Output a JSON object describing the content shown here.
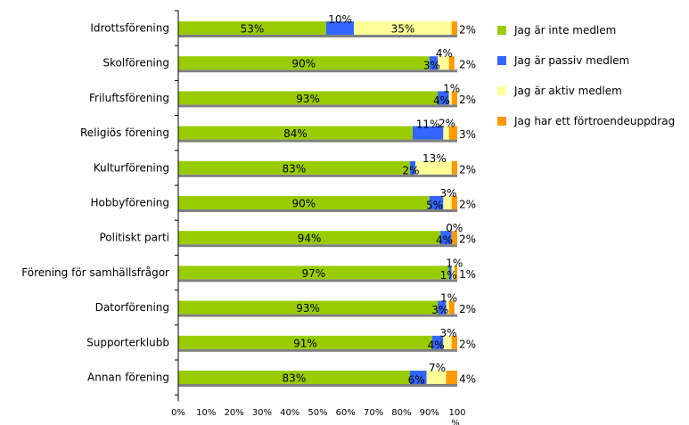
{
  "chart_data": {
    "type": "bar",
    "orientation": "horizontal",
    "stacked": true,
    "categories": [
      "Idrottsförening",
      "Skolförening",
      "Friluftsförening",
      "Religiös förening",
      "Kulturförening",
      "Hobbyförening",
      "Politiskt parti",
      "Förening för samhällsfrågor",
      "Datorförening",
      "Supporterklubb",
      "Annan förening"
    ],
    "series": [
      {
        "name": "Jag är inte medlem",
        "color": "#99cc00",
        "values": [
          53,
          90,
          93,
          84,
          83,
          90,
          94,
          97,
          93,
          91,
          83
        ],
        "labels": [
          "53%",
          "90%",
          "93%",
          "84%",
          "83%",
          "90%",
          "94%",
          "97%",
          "93%",
          "91%",
          "83%"
        ]
      },
      {
        "name": "Jag är passiv medlem",
        "color": "#3366ff",
        "values": [
          10,
          3,
          4,
          11,
          2,
          5,
          4,
          1,
          3,
          4,
          6
        ],
        "labels": [
          "10%",
          "3%",
          "4%",
          "11%",
          "2%",
          "5%",
          "4%",
          "1%",
          "3%",
          "4%",
          "6%"
        ]
      },
      {
        "name": "Jag är aktiv medlem",
        "color": "#ffff99",
        "values": [
          35,
          4,
          1,
          2,
          13,
          3,
          0,
          1,
          1,
          3,
          7
        ],
        "labels": [
          "35%",
          "4%",
          "1%",
          "2%",
          "13%",
          "3%",
          "0%",
          "1%",
          "1%",
          "3%",
          "7%"
        ]
      },
      {
        "name": "Jag har ett förtroendeuppdrag",
        "color": "#ff9900",
        "values": [
          2,
          2,
          2,
          3,
          2,
          2,
          2,
          1,
          2,
          2,
          4
        ],
        "labels": [
          "2%",
          "2%",
          "2%",
          "3%",
          "2%",
          "2%",
          "2%",
          "1%",
          "2%",
          "2%",
          "4%"
        ]
      }
    ],
    "xaxis": {
      "ticks": [
        "0%",
        "10%",
        "20%",
        "30%",
        "40%",
        "50%",
        "60%",
        "70%",
        "80%",
        "90%",
        "100%"
      ],
      "range": [
        0,
        100
      ]
    },
    "grid": false,
    "legend_position": "right"
  }
}
